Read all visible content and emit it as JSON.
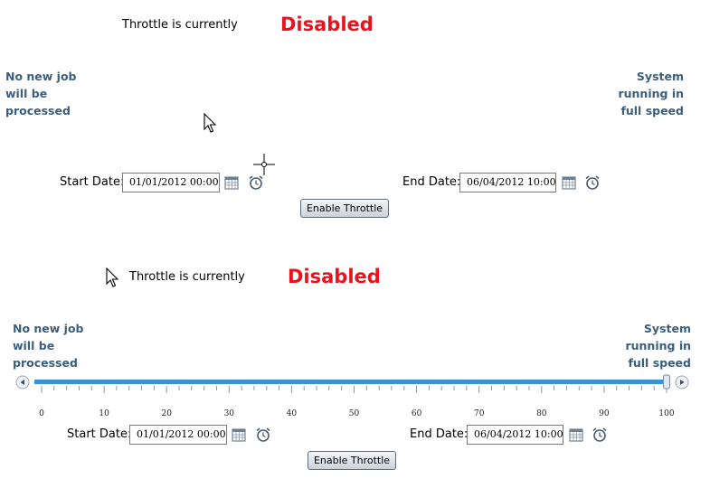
{
  "colors": {
    "status_value": "#e8141c",
    "side_note": "#3b5e7d",
    "slider_track": "#3d8fd6"
  },
  "panel_top": {
    "status_label": "Throttle is currently",
    "status_value": "Disabled",
    "left_note": "No new job\nwill be\nprocessed",
    "right_note": "System\nrunning in\nfull speed",
    "start_date_label": "Start Date:",
    "start_date_value": "01/01/2012 00:00",
    "end_date_label": "End Date:",
    "end_date_value": "06/04/2012 10:00",
    "calendar_icon": "calendar-icon",
    "clock_icon": "alarm-clock-icon",
    "button_label": "Enable Throttle"
  },
  "panel_bottom": {
    "status_label": "Throttle is currently",
    "status_value": "Disabled",
    "left_note": "No new job\nwill be\nprocessed",
    "right_note": "System\nrunning in\nfull speed",
    "slider": {
      "min": 0,
      "max": 100,
      "value": 100,
      "major_step": 10,
      "minor_step": 2,
      "tick_labels": [
        "0",
        "10",
        "20",
        "30",
        "40",
        "50",
        "60",
        "70",
        "80",
        "90",
        "100"
      ],
      "left_arrow_icon": "arrow-left-icon",
      "right_arrow_icon": "arrow-right-icon"
    },
    "start_date_label": "Start Date:",
    "start_date_value": "01/01/2012 00:00",
    "end_date_label": "End Date:",
    "end_date_value": "06/04/2012 10:00",
    "calendar_icon": "calendar-icon",
    "clock_icon": "alarm-clock-icon",
    "button_label": "Enable Throttle"
  }
}
